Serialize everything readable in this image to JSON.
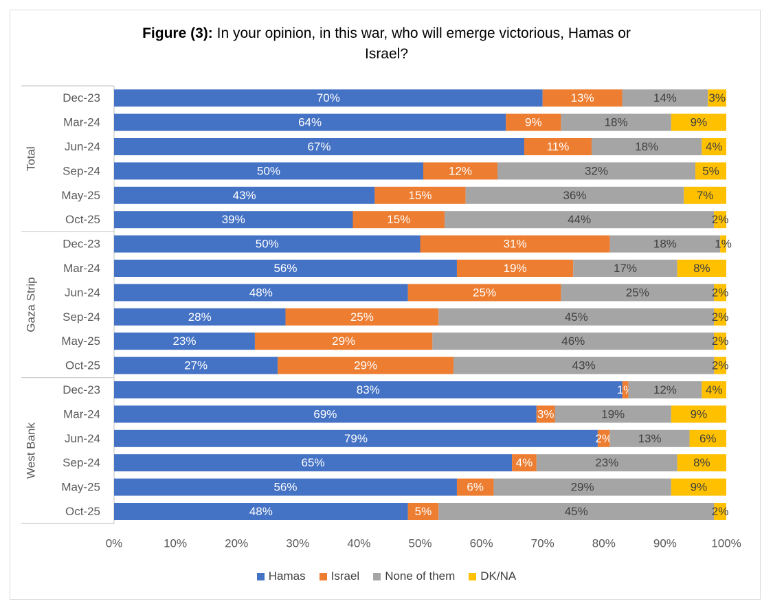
{
  "title": {
    "bold": "Figure (3):",
    "text_line1": " In your opinion, in this war, who will emerge victorious, Hamas or",
    "text_line2": "Israel?"
  },
  "chart_data": {
    "type": "bar",
    "orientation": "horizontal",
    "stacked": "percent",
    "xlim": [
      0,
      100
    ],
    "x_ticks": [
      "0%",
      "10%",
      "20%",
      "30%",
      "40%",
      "50%",
      "60%",
      "70%",
      "80%",
      "90%",
      "100%"
    ],
    "legend_position": "bottom",
    "grid": false,
    "series": [
      {
        "name": "Hamas",
        "color": "#4472C4"
      },
      {
        "name": "Israel",
        "color": "#ED7D31"
      },
      {
        "name": "None of them",
        "color": "#A5A5A5"
      },
      {
        "name": "DK/NA",
        "color": "#FFC000"
      }
    ],
    "groups": [
      {
        "name": "Total",
        "rows": [
          {
            "label": "Dec-23",
            "values": [
              70,
              13,
              14,
              3
            ]
          },
          {
            "label": "Mar-24",
            "values": [
              64,
              9,
              18,
              9
            ]
          },
          {
            "label": "Jun-24",
            "values": [
              67,
              11,
              18,
              4
            ]
          },
          {
            "label": "Sep-24",
            "values": [
              50,
              12,
              32,
              5
            ]
          },
          {
            "label": "May-25",
            "values": [
              43,
              15,
              36,
              7
            ]
          },
          {
            "label": "Oct-25",
            "values": [
              39,
              15,
              44,
              2
            ]
          }
        ]
      },
      {
        "name": "Gaza Strip",
        "rows": [
          {
            "label": "Dec-23",
            "values": [
              50,
              31,
              18,
              1
            ]
          },
          {
            "label": "Mar-24",
            "values": [
              56,
              19,
              17,
              8
            ]
          },
          {
            "label": "Jun-24",
            "values": [
              48,
              25,
              25,
              2
            ]
          },
          {
            "label": "Sep-24",
            "values": [
              28,
              25,
              45,
              2
            ]
          },
          {
            "label": "May-25",
            "values": [
              23,
              29,
              46,
              2
            ]
          },
          {
            "label": "Oct-25",
            "values": [
              27,
              29,
              43,
              2
            ]
          }
        ]
      },
      {
        "name": "West Bank",
        "rows": [
          {
            "label": "Dec-23",
            "values": [
              83,
              1,
              12,
              4
            ]
          },
          {
            "label": "Mar-24",
            "values": [
              69,
              3,
              19,
              9
            ]
          },
          {
            "label": "Jun-24",
            "values": [
              79,
              2,
              13,
              6
            ]
          },
          {
            "label": "Sep-24",
            "values": [
              65,
              4,
              23,
              8
            ]
          },
          {
            "label": "May-25",
            "values": [
              56,
              6,
              29,
              9
            ]
          },
          {
            "label": "Oct-25",
            "values": [
              48,
              5,
              45,
              2
            ]
          }
        ]
      }
    ]
  }
}
